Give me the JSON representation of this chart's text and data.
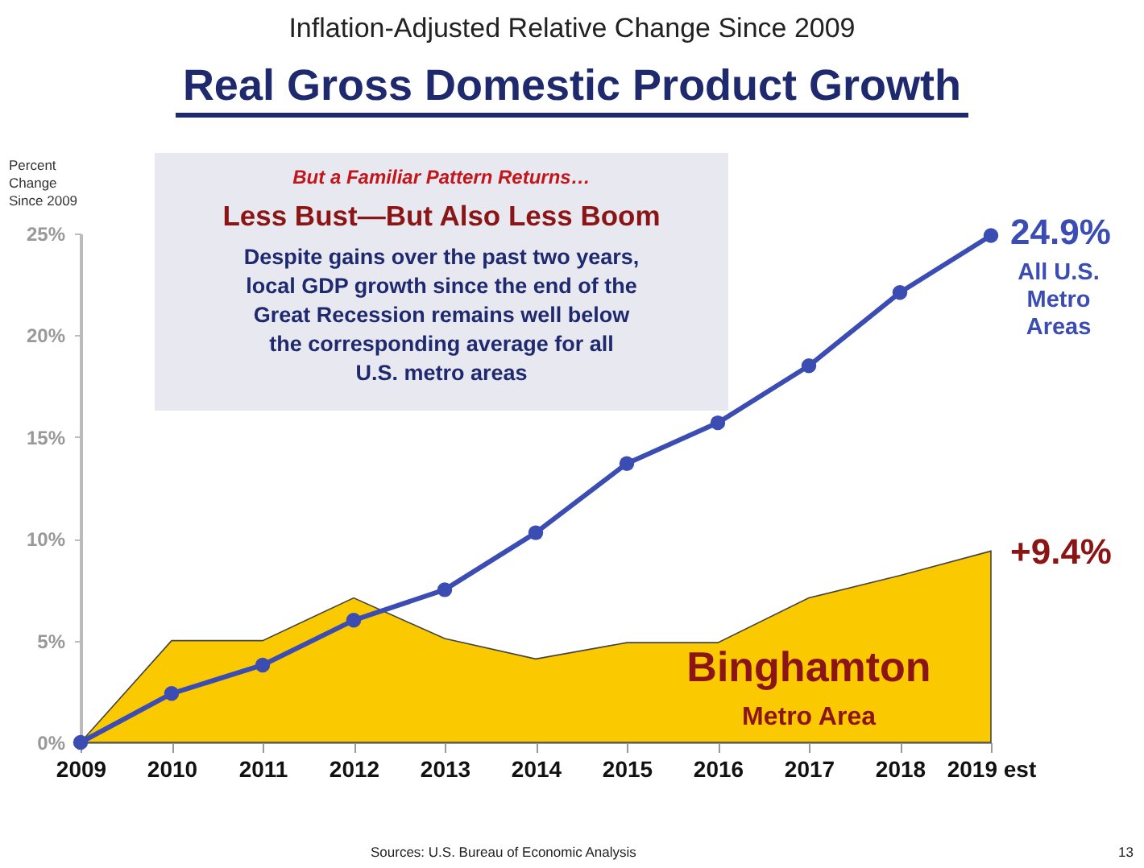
{
  "chart_data": {
    "type": "line",
    "subtitle": "Inflation-Adjusted Relative Change Since 2009",
    "title": "Real Gross Domestic Product Growth",
    "ylabel": "Percent Change Since 2009",
    "categories": [
      "2009",
      "2010",
      "2011",
      "2012",
      "2013",
      "2014",
      "2015",
      "2016",
      "2017",
      "2018",
      "2019 est"
    ],
    "series": [
      {
        "type": "area",
        "name": "Binghamton Metro Area",
        "color": "#fbc900",
        "values": [
          0,
          5.0,
          5.0,
          7.1,
          5.1,
          4.1,
          4.9,
          4.9,
          7.1,
          8.2,
          9.4
        ],
        "value_labels": [
          null,
          null,
          null,
          null,
          null,
          null,
          null,
          null,
          null,
          null,
          "+9.4%"
        ]
      },
      {
        "name": "All U.S. Metro Areas",
        "color": "#3b4db3",
        "marker": "circle",
        "values": [
          0,
          2.4,
          3.8,
          6.0,
          7.5,
          10.3,
          13.7,
          15.7,
          18.5,
          22.1,
          24.9
        ],
        "value_labels": [
          null,
          null,
          null,
          null,
          null,
          null,
          null,
          null,
          null,
          null,
          "24.9%"
        ]
      }
    ],
    "ylim": [
      0,
      25
    ],
    "yticks": [
      {
        "value": 0,
        "label": "0%"
      },
      {
        "value": 5,
        "label": "5%"
      },
      {
        "value": 10,
        "label": "10%"
      },
      {
        "value": 15,
        "label": "15%"
      },
      {
        "value": 20,
        "label": "20%"
      },
      {
        "value": 25,
        "label": "25%"
      }
    ],
    "grid": false,
    "line_style": "solid",
    "annotations": [
      "But a Familiar Pattern Returns…",
      "Less Bust—But Also Less Boom",
      "Despite gains over the past two years,",
      "local GDP growth since the end of the",
      "Great Recession remains well below",
      "the corresponding average for all",
      "U.S. metro areas",
      "Sources:  U.S. Bureau of Economic Analysis",
      "13"
    ]
  }
}
